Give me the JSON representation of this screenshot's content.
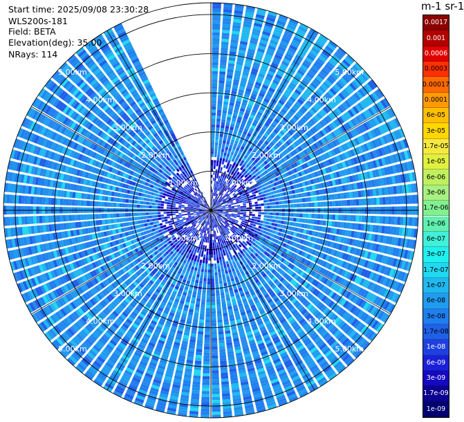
{
  "info": {
    "start_time": "Start time: 2025/09/08 23:30:28",
    "instrument": "WLS200s-181",
    "field": "Field: BETA",
    "elevation": "Elevation(deg): 35.00",
    "nrays": "NRays: 114"
  },
  "chart_data": {
    "type": "heatmap",
    "projection": "polar-ppi",
    "range_ring_labels": [
      "1.00km",
      "2.00km",
      "3.00km",
      "4.00km",
      "5.00km"
    ],
    "range_rings_km": [
      1,
      2,
      3,
      4,
      5
    ],
    "max_range_km": 5.3,
    "missing_sector_deg": [
      335,
      359
    ],
    "nrays": 114,
    "colorbar": {
      "title": "m-1 sr-1",
      "labels": [
        "0.0017",
        "0.001",
        "0.0006",
        "0.0003",
        "0.00017",
        "0.0001",
        "6e-05",
        "3e-05",
        "1.7e-05",
        "1e-05",
        "6e-06",
        "3e-06",
        "1.7e-06",
        "1e-06",
        "6e-07",
        "3e-07",
        "1.7e-07",
        "1e-07",
        "6e-08",
        "3e-08",
        "1.7e-08",
        "1e-08",
        "6e-09",
        "3e-09",
        "1.7e-09",
        "1e-09"
      ],
      "colors": [
        "#8b0000",
        "#b10000",
        "#e00000",
        "#ff3000",
        "#ff6a00",
        "#ff9a00",
        "#ffbf00",
        "#ffd700",
        "#f5e840",
        "#e0f040",
        "#c0f060",
        "#a8f080",
        "#80f090",
        "#60f0b0",
        "#40f0d8",
        "#20f0f0",
        "#20d8f0",
        "#20b8f0",
        "#1f9cf0",
        "#1f7ef0",
        "#1f60e8",
        "#1f40e0",
        "#1a20d8",
        "#1408c0",
        "#0c0090",
        "#000070"
      ]
    }
  }
}
